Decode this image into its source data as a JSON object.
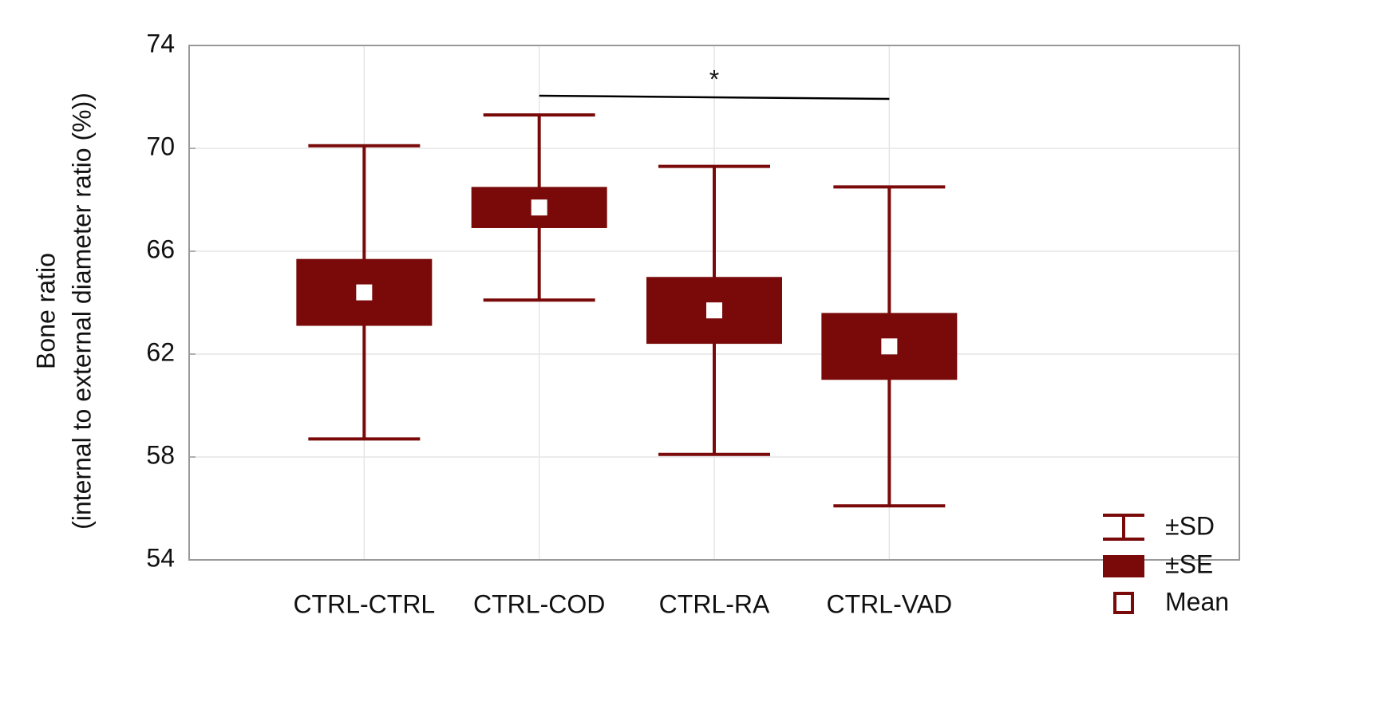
{
  "chart_data": {
    "type": "box",
    "ylabel": [
      "Bone ratio",
      "(internal to external diameter ratio (%))"
    ],
    "categories": [
      "CTRL-CTRL",
      "CTRL-COD",
      "CTRL-RA",
      "CTRL-VAD"
    ],
    "mean": [
      64.4,
      67.7,
      63.7,
      62.3
    ],
    "se": [
      1.3,
      0.8,
      1.3,
      1.3
    ],
    "sd": [
      5.7,
      3.6,
      5.6,
      6.2
    ],
    "color": "#7a0a0a",
    "ylim": [
      54,
      74
    ],
    "yticks": [
      54,
      58,
      62,
      66,
      70,
      74
    ],
    "grid": true,
    "annotation": "*",
    "legend": {
      "sd": "±SD",
      "se": "±SE",
      "mean": "Mean"
    }
  }
}
